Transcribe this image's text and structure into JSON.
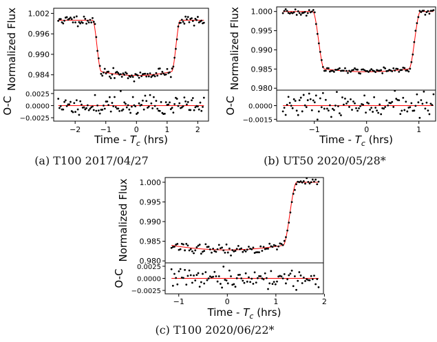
{
  "chart_data": [
    {
      "type": "scatter",
      "caption": "(a) T100 2017/04/27",
      "xlabel": "Time - T_c (hrs)",
      "ylabel_flux": "Normalized Flux",
      "ylabel_oc": "O-C",
      "xlim": [
        -2.7,
        2.35
      ],
      "ylim_flux": [
        0.9795,
        1.0035
      ],
      "ylim_oc": [
        -0.0032,
        0.0032
      ],
      "xticks": [
        -2,
        -1,
        0,
        1,
        2
      ],
      "xtick_labels": [
        "−2",
        "−1",
        "0",
        "1",
        "2"
      ],
      "yticks_flux": [
        0.984,
        0.99,
        0.996,
        1.002
      ],
      "ytick_labels_flux": [
        "0.984",
        "0.990",
        "0.996",
        "1.002"
      ],
      "yticks_oc": [
        -0.0025,
        0.0,
        0.0025
      ],
      "ytick_labels_oc": [
        "−0.0025",
        "0.0000",
        "0.0025"
      ],
      "model": {
        "t0": 0.0,
        "half_duration": 1.43,
        "ingress": 0.28,
        "depth": 0.0162,
        "baseline": 1.0,
        "curvature": 0.0018
      },
      "data_points": {
        "x_start": -2.55,
        "x_end": 2.2,
        "count": 120,
        "flux_scatter": 0.0007,
        "oc_scatter": 0.0011,
        "seed": 11
      },
      "series": [
        {
          "name": "data",
          "color": "#000000",
          "marker": "point"
        },
        {
          "name": "model",
          "color": "#ff0000",
          "marker": "line"
        }
      ]
    },
    {
      "type": "scatter",
      "caption": "(b) UT50 2020/05/28*",
      "xlabel": "Time - T_c (hrs)",
      "ylabel_flux": "Normalized Flux",
      "ylabel_oc": "O-C",
      "xlim": [
        -1.72,
        1.32
      ],
      "ylim_flux": [
        0.9795,
        1.0012
      ],
      "ylim_oc": [
        -0.0017,
        0.0017
      ],
      "xticks": [
        -1,
        0,
        1
      ],
      "xtick_labels": [
        "−1",
        "0",
        "1"
      ],
      "yticks_flux": [
        0.98,
        0.985,
        0.99,
        0.995,
        1.0
      ],
      "ytick_labels_flux": [
        "0.980",
        "0.985",
        "0.990",
        "0.995",
        "1.000"
      ],
      "yticks_oc": [
        -0.0015,
        0.0
      ],
      "ytick_labels_oc": [
        "−0.0015",
        "0.0000"
      ],
      "model": {
        "t0": 0.0,
        "half_duration": 1.03,
        "ingress": 0.22,
        "depth": 0.0157,
        "baseline": 1.0,
        "curvature": 0.0012
      },
      "data_points": {
        "x_start": -1.6,
        "x_end": 1.28,
        "count": 110,
        "flux_scatter": 0.0004,
        "oc_scatter": 0.0006,
        "seed": 23
      },
      "series": [
        {
          "name": "data",
          "color": "#000000",
          "marker": "point"
        },
        {
          "name": "model",
          "color": "#ff0000",
          "marker": "line"
        }
      ]
    },
    {
      "type": "scatter",
      "caption": "(c) T100 2020/06/22*",
      "xlabel": "Time - T_c (hrs)",
      "ylabel_flux": "Normalized Flux",
      "ylabel_oc": "O-C",
      "xlim": [
        -1.28,
        1.98
      ],
      "ylim_flux": [
        0.9795,
        1.0012
      ],
      "ylim_oc": [
        -0.0032,
        0.0032
      ],
      "xticks": [
        -1,
        0,
        1,
        2
      ],
      "xtick_labels": [
        "−1",
        "0",
        "1",
        "2"
      ],
      "yticks_flux": [
        0.98,
        0.985,
        0.99,
        0.995,
        1.0
      ],
      "ytick_labels_flux": [
        "0.980",
        "0.985",
        "0.990",
        "0.995",
        "1.000"
      ],
      "yticks_oc": [
        -0.0025,
        0.0,
        0.0025
      ],
      "ytick_labels_oc": [
        "−0.0025",
        "0.0000",
        "0.0025"
      ],
      "model": {
        "t0": 0.0,
        "half_duration": 1.43,
        "ingress": 0.28,
        "depth": 0.0172,
        "baseline": 1.0,
        "curvature": 0.0018
      },
      "data_points": {
        "x_start": -1.15,
        "x_end": 1.88,
        "count": 100,
        "flux_scatter": 0.0006,
        "oc_scatter": 0.001,
        "seed": 37
      },
      "series": [
        {
          "name": "data",
          "color": "#000000",
          "marker": "point"
        },
        {
          "name": "model",
          "color": "#ff0000",
          "marker": "line"
        }
      ]
    }
  ]
}
